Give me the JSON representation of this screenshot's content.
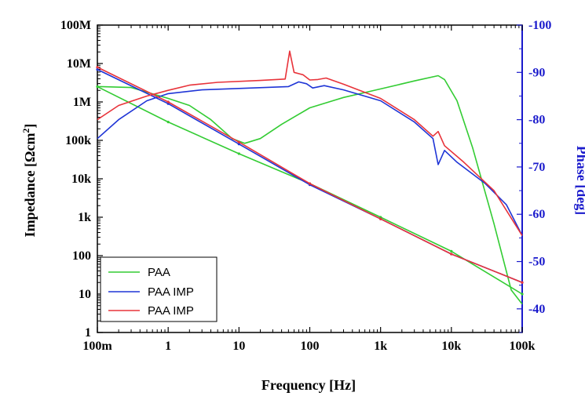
{
  "chart_data": {
    "type": "line",
    "xlabel": "Frequency [Hz]",
    "ylabel_left": "Impedance [Ωcm",
    "ylabel_left_sup": "2",
    "ylabel_left_close": "]",
    "ylabel_right": "Phase [deg]",
    "x_scale": "log",
    "xlim": [
      0.1,
      100000
    ],
    "y_left_scale": "log",
    "y_left_lim": [
      1,
      100000000
    ],
    "y_right_lim": [
      -35,
      -100
    ],
    "x_ticks": [
      {
        "value": 0.1,
        "label": "100m"
      },
      {
        "value": 1,
        "label": "1"
      },
      {
        "value": 10,
        "label": "10"
      },
      {
        "value": 100,
        "label": "100"
      },
      {
        "value": 1000,
        "label": "1k"
      },
      {
        "value": 10000,
        "label": "10k"
      },
      {
        "value": 100000,
        "label": "100k"
      }
    ],
    "y_left_ticks": [
      {
        "value": 1,
        "label": "1"
      },
      {
        "value": 10,
        "label": "10"
      },
      {
        "value": 100,
        "label": "100"
      },
      {
        "value": 1000,
        "label": "1k"
      },
      {
        "value": 10000,
        "label": "10k"
      },
      {
        "value": 100000,
        "label": "100k"
      },
      {
        "value": 1000000,
        "label": "1M"
      },
      {
        "value": 10000000,
        "label": "10M"
      },
      {
        "value": 100000000,
        "label": "100M"
      }
    ],
    "y_right_ticks": [
      {
        "value": -40,
        "label": "-40"
      },
      {
        "value": -50,
        "label": "-50"
      },
      {
        "value": -60,
        "label": "-60"
      },
      {
        "value": -70,
        "label": "-70"
      },
      {
        "value": -80,
        "label": "-80"
      },
      {
        "value": -90,
        "label": "-90"
      },
      {
        "value": -100,
        "label": "-100"
      }
    ],
    "legend_position": "bottom-left",
    "colors": {
      "axis": "#000000",
      "right_axis": "#1a1acc",
      "green": "#33cc33",
      "blue": "#1f35d6",
      "red": "#e8333a"
    },
    "series": [
      {
        "name": "PAA",
        "color": "#33cc33",
        "kind": "impedance",
        "x": [
          0.1,
          1,
          10,
          100,
          1000,
          10000,
          100000
        ],
        "y": [
          2500000,
          300000,
          45000,
          7500,
          1000,
          130,
          10
        ]
      },
      {
        "color": "#33cc33",
        "kind": "phase",
        "x": [
          0.1,
          0.3,
          1,
          2,
          4,
          8,
          12,
          20,
          40,
          100,
          300,
          1000,
          3000,
          6500,
          8000,
          12000,
          20000,
          40000,
          70000,
          100000
        ],
        "y": [
          -87,
          -86.8,
          -84.5,
          -83,
          -80,
          -76,
          -75,
          -76,
          -79,
          -82.5,
          -84.7,
          -86.5,
          -88.2,
          -89.3,
          -88.5,
          -84,
          -74,
          -58,
          -44,
          -41
        ]
      },
      {
        "name": "PAA IMP",
        "color": "#1f35d6",
        "kind": "impedance",
        "x": [
          0.1,
          1,
          10,
          100,
          1000,
          10000,
          100000
        ],
        "y": [
          7000000,
          900000,
          80000,
          7000,
          900,
          110,
          20
        ]
      },
      {
        "color": "#1f35d6",
        "kind": "phase",
        "x": [
          0.1,
          0.2,
          0.5,
          1,
          3,
          10,
          50,
          70,
          90,
          110,
          160,
          300,
          1000,
          3000,
          5500,
          6500,
          8000,
          12000,
          30000,
          60000,
          100000
        ],
        "y": [
          -76,
          -80,
          -84,
          -85.5,
          -86.3,
          -86.6,
          -87,
          -88,
          -87.6,
          -86.7,
          -87.2,
          -86.3,
          -84,
          -79.5,
          -76,
          -70.5,
          -73.5,
          -71,
          -66.5,
          -62,
          -55.5
        ]
      },
      {
        "name": "PAA IMP",
        "color": "#e8333a",
        "kind": "impedance",
        "x": [
          0.1,
          1,
          10,
          100,
          1000,
          10000,
          100000
        ],
        "y": [
          8000000,
          1000000,
          90000,
          7500,
          900,
          110,
          20
        ]
      },
      {
        "color": "#e8333a",
        "kind": "phase",
        "x": [
          0.1,
          0.2,
          0.5,
          1,
          2,
          5,
          20,
          45,
          52,
          60,
          80,
          100,
          130,
          170,
          300,
          1000,
          3000,
          5500,
          6500,
          8000,
          15000,
          40000,
          100000
        ],
        "y": [
          -80,
          -83,
          -85,
          -86.2,
          -87.3,
          -87.9,
          -88.3,
          -88.6,
          -94.5,
          -90,
          -89.5,
          -88.4,
          -88.5,
          -88.8,
          -87.5,
          -84.5,
          -80,
          -76.5,
          -77.5,
          -74.5,
          -71,
          -65,
          -55.5
        ]
      }
    ]
  }
}
